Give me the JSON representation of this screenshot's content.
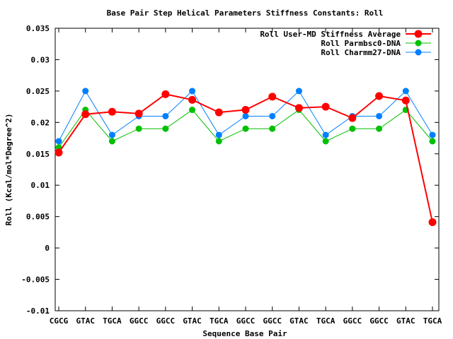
{
  "chart_data": {
    "type": "line",
    "title": "Base Pair Step Helical Parameters Stiffness Constants: Roll",
    "xlabel": "Sequence Base Pair",
    "ylabel": "Roll (Kcal/mol*Degree^2)",
    "categories": [
      "CGCG",
      "GTAC",
      "TGCA",
      "GGCC",
      "GGCC",
      "GTAC",
      "TGCA",
      "GGCC",
      "GGCC",
      "GTAC",
      "TGCA",
      "GGCC",
      "GGCC",
      "GTAC",
      "TGCA"
    ],
    "ylim": [
      -0.01,
      0.035
    ],
    "yticks": [
      "-0.01",
      "-0.005",
      "0",
      "0.005",
      "0.01",
      "0.015",
      "0.02",
      "0.025",
      "0.03",
      "0.035"
    ],
    "legend_position": "top-right",
    "grid": false,
    "series": [
      {
        "name": "Roll User-MD Stiffness Average",
        "color": "#ff0000",
        "values": [
          0.0152,
          0.0213,
          0.0217,
          0.0214,
          0.0245,
          0.0236,
          0.0216,
          0.022,
          0.0241,
          0.0223,
          0.0225,
          0.0207,
          0.0242,
          0.0235,
          0.0041
        ]
      },
      {
        "name": "Roll Parmbsc0-DNA",
        "color": "#00c000",
        "values": [
          0.016,
          0.022,
          0.017,
          0.019,
          0.019,
          0.022,
          0.017,
          0.019,
          0.019,
          0.022,
          0.017,
          0.019,
          0.019,
          0.022,
          0.017
        ]
      },
      {
        "name": "Roll Charmm27-DNA",
        "color": "#0080ff",
        "values": [
          0.017,
          0.025,
          0.018,
          0.021,
          0.021,
          0.025,
          0.018,
          0.021,
          0.021,
          0.025,
          0.018,
          0.021,
          0.021,
          0.025,
          0.018
        ]
      }
    ]
  }
}
